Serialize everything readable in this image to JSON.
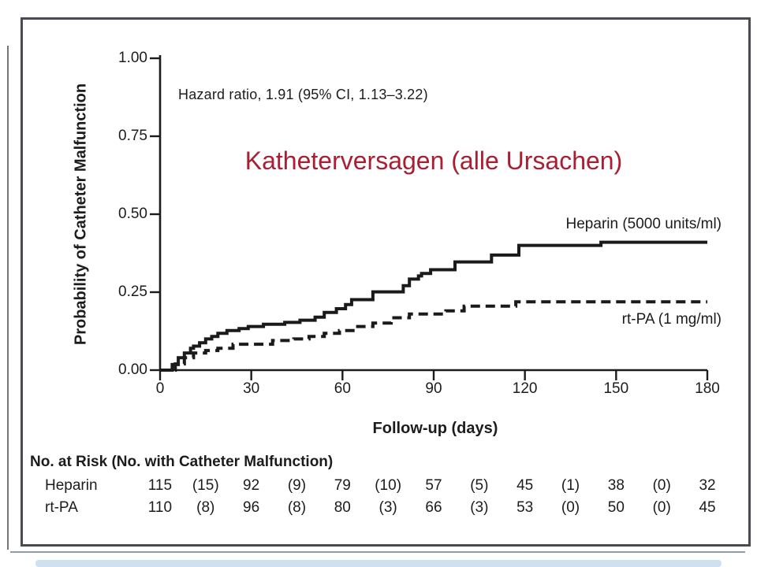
{
  "colors": {
    "title_red": "#a91e33",
    "ink": "#1c1c1c",
    "frame": "#494a52"
  },
  "chart_data": {
    "type": "line",
    "variant": "kaplan-meier-step",
    "title": "Katheterversagen (alle Ursachen)",
    "annotation": "Hazard ratio, 1.91 (95% CI, 1.13–3.22)",
    "xlabel": "Follow-up (days)",
    "ylabel": "Probability of Catheter Malfunction",
    "xlim": [
      0,
      180
    ],
    "ylim": [
      0,
      1.0
    ],
    "xticks": [
      "0",
      "30",
      "60",
      "90",
      "120",
      "150",
      "180"
    ],
    "yticks": [
      {
        "value": 1.0,
        "label": "1.00"
      },
      {
        "value": 0.75,
        "label": "0.75"
      },
      {
        "value": 0.5,
        "label": "0.50"
      },
      {
        "value": 0.25,
        "label": "0.25"
      },
      {
        "value": 0.0,
        "label": "0.00"
      }
    ],
    "grid": false,
    "legend_position": "inline-right",
    "series": [
      {
        "name": "Heparin (5000 units/ml)",
        "line_style": "solid",
        "color": "#1a1a1a",
        "points": [
          [
            0,
            0
          ],
          [
            4,
            0.018
          ],
          [
            6,
            0.04
          ],
          [
            8,
            0.055
          ],
          [
            10,
            0.07
          ],
          [
            11,
            0.077
          ],
          [
            13,
            0.088
          ],
          [
            15,
            0.1
          ],
          [
            17,
            0.108
          ],
          [
            19,
            0.118
          ],
          [
            22,
            0.127
          ],
          [
            26,
            0.133
          ],
          [
            29,
            0.14
          ],
          [
            34,
            0.147
          ],
          [
            41,
            0.153
          ],
          [
            46,
            0.16
          ],
          [
            51,
            0.17
          ],
          [
            54,
            0.185
          ],
          [
            58,
            0.197
          ],
          [
            61,
            0.21
          ],
          [
            63,
            0.226
          ],
          [
            70,
            0.251
          ],
          [
            80,
            0.271
          ],
          [
            82,
            0.292
          ],
          [
            85,
            0.302
          ],
          [
            86,
            0.31
          ],
          [
            89,
            0.322
          ],
          [
            97,
            0.347
          ],
          [
            109,
            0.369
          ],
          [
            118,
            0.4
          ],
          [
            145,
            0.41
          ]
        ]
      },
      {
        "name": "rt-PA (1 mg/ml)",
        "line_style": "dashed",
        "color": "#1a1a1a",
        "points": [
          [
            0,
            0
          ],
          [
            5,
            0.02
          ],
          [
            8,
            0.04
          ],
          [
            11,
            0.055
          ],
          [
            15,
            0.063
          ],
          [
            19,
            0.07
          ],
          [
            24,
            0.083
          ],
          [
            37,
            0.095
          ],
          [
            44,
            0.1
          ],
          [
            49,
            0.108
          ],
          [
            54,
            0.118
          ],
          [
            59,
            0.127
          ],
          [
            65,
            0.14
          ],
          [
            70,
            0.151
          ],
          [
            76,
            0.168
          ],
          [
            82,
            0.18
          ],
          [
            94,
            0.19
          ],
          [
            100,
            0.205
          ],
          [
            117,
            0.219
          ]
        ]
      }
    ]
  },
  "risk_table": {
    "title": "No. at Risk (No. with Catheter Malfunction)",
    "rows": [
      {
        "label": "Heparin",
        "values": [
          "115",
          "(15)",
          "92",
          "(9)",
          "79",
          "(10)",
          "57",
          "(5)",
          "45",
          "(1)",
          "38",
          "(0)",
          "32"
        ]
      },
      {
        "label": "rt-PA",
        "values": [
          "110",
          "(8)",
          "96",
          "(8)",
          "80",
          "(3)",
          "66",
          "(3)",
          "53",
          "(0)",
          "50",
          "(0)",
          "45"
        ]
      }
    ]
  }
}
